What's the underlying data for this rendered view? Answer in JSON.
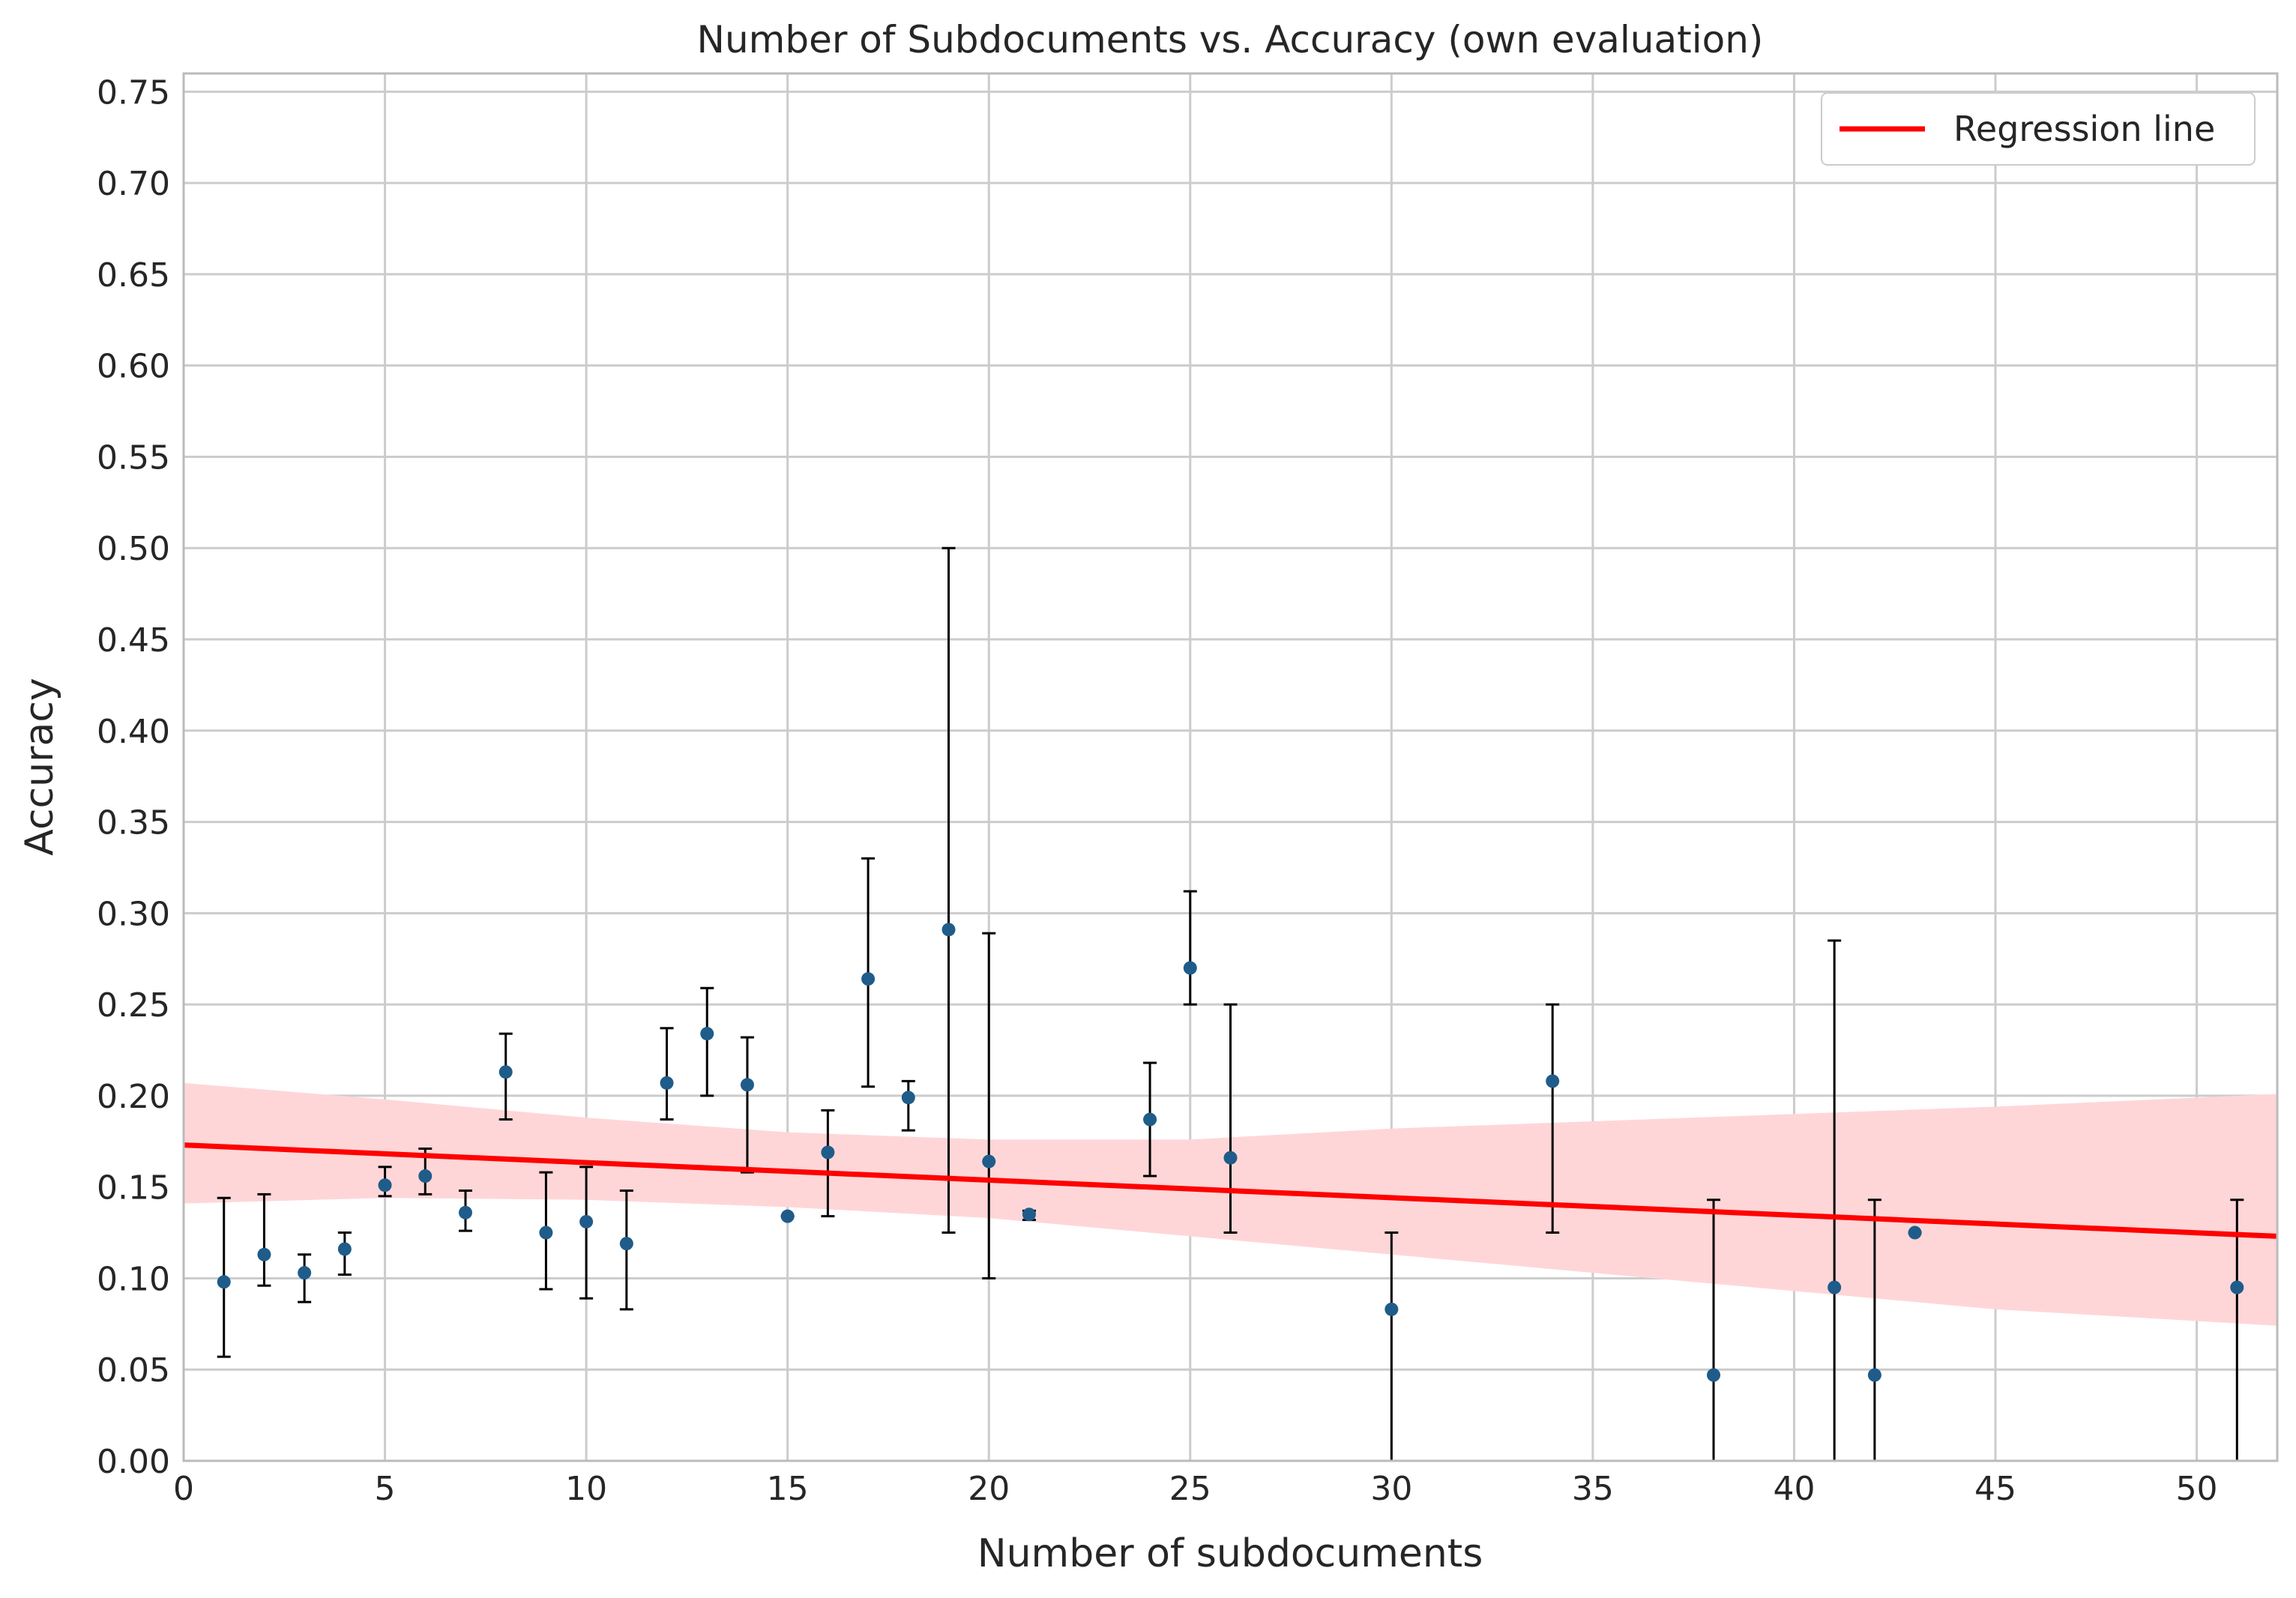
{
  "chart_data": {
    "type": "scatter",
    "title": "Number of Subdocuments vs. Accuracy (own evaluation)",
    "xlabel": "Number of subdocuments",
    "ylabel": "Accuracy",
    "xlim": [
      0,
      52
    ],
    "ylim": [
      0,
      0.76
    ],
    "grid": true,
    "legend_placement": "top-right",
    "x_ticks": [
      "0",
      "5",
      "10",
      "15",
      "20",
      "25",
      "30",
      "35",
      "40",
      "45",
      "50"
    ],
    "y_ticks": [
      "0.00",
      "0.05",
      "0.10",
      "0.15",
      "0.20",
      "0.25",
      "0.30",
      "0.35",
      "0.40",
      "0.45",
      "0.50",
      "0.55",
      "0.60",
      "0.65",
      "0.70",
      "0.75"
    ],
    "colors": {
      "points": "#1f5c8a",
      "error_bars": "#000000",
      "regression": "#ff0000",
      "band": "#ffd6d8",
      "grid": "#cccccc",
      "axes": "#bbbbbb"
    },
    "points": [
      {
        "x": 1,
        "y": 0.098,
        "low": 0.057,
        "high": 0.144
      },
      {
        "x": 2,
        "y": 0.113,
        "low": 0.096,
        "high": 0.146
      },
      {
        "x": 3,
        "y": 0.103,
        "low": 0.087,
        "high": 0.113
      },
      {
        "x": 4,
        "y": 0.116,
        "low": 0.102,
        "high": 0.125
      },
      {
        "x": 5,
        "y": 0.151,
        "low": 0.145,
        "high": 0.161
      },
      {
        "x": 6,
        "y": 0.156,
        "low": 0.146,
        "high": 0.171
      },
      {
        "x": 7,
        "y": 0.136,
        "low": 0.126,
        "high": 0.148
      },
      {
        "x": 8,
        "y": 0.213,
        "low": 0.187,
        "high": 0.234
      },
      {
        "x": 9,
        "y": 0.125,
        "low": 0.094,
        "high": 0.158
      },
      {
        "x": 10,
        "y": 0.131,
        "low": 0.089,
        "high": 0.161
      },
      {
        "x": 11,
        "y": 0.119,
        "low": 0.083,
        "high": 0.148
      },
      {
        "x": 12,
        "y": 0.207,
        "low": 0.187,
        "high": 0.237
      },
      {
        "x": 13,
        "y": 0.234,
        "low": 0.2,
        "high": 0.259
      },
      {
        "x": 14,
        "y": 0.206,
        "low": 0.158,
        "high": 0.232
      },
      {
        "x": 15,
        "y": 0.134,
        "low": 0.134,
        "high": 0.134
      },
      {
        "x": 16,
        "y": 0.169,
        "low": 0.134,
        "high": 0.192
      },
      {
        "x": 17,
        "y": 0.264,
        "low": 0.205,
        "high": 0.33
      },
      {
        "x": 18,
        "y": 0.199,
        "low": 0.181,
        "high": 0.208
      },
      {
        "x": 19,
        "y": 0.291,
        "low": 0.125,
        "high": 0.5
      },
      {
        "x": 20,
        "y": 0.164,
        "low": 0.1,
        "high": 0.289
      },
      {
        "x": 21,
        "y": 0.135,
        "low": 0.132,
        "high": 0.137
      },
      {
        "x": 24,
        "y": 0.187,
        "low": 0.156,
        "high": 0.218
      },
      {
        "x": 25,
        "y": 0.27,
        "low": 0.25,
        "high": 0.312
      },
      {
        "x": 26,
        "y": 0.166,
        "low": 0.125,
        "high": 0.25
      },
      {
        "x": 30,
        "y": 0.083,
        "low": 0.0,
        "high": 0.125
      },
      {
        "x": 34,
        "y": 0.208,
        "low": 0.125,
        "high": 0.25
      },
      {
        "x": 38,
        "y": 0.047,
        "low": 0.0,
        "high": 0.143
      },
      {
        "x": 41,
        "y": 0.095,
        "low": 0.0,
        "high": 0.285
      },
      {
        "x": 42,
        "y": 0.047,
        "low": 0.0,
        "high": 0.143
      },
      {
        "x": 43,
        "y": 0.125,
        "low": 0.125,
        "high": 0.125
      },
      {
        "x": 51,
        "y": 0.095,
        "low": 0.0,
        "high": 0.143
      }
    ],
    "regression": {
      "name": "Regression line",
      "x": [
        0,
        52
      ],
      "y": [
        0.173,
        0.123
      ]
    },
    "confidence_band": {
      "x": [
        0,
        5,
        10,
        15,
        20,
        25,
        30,
        35,
        40,
        45,
        52
      ],
      "upper": [
        0.207,
        0.198,
        0.188,
        0.18,
        0.176,
        0.176,
        0.182,
        0.186,
        0.19,
        0.194,
        0.201
      ],
      "lower": [
        0.141,
        0.144,
        0.143,
        0.139,
        0.133,
        0.123,
        0.113,
        0.103,
        0.093,
        0.083,
        0.074
      ]
    },
    "legend": [
      {
        "label": "Regression line",
        "color": "#ff0000"
      }
    ]
  }
}
